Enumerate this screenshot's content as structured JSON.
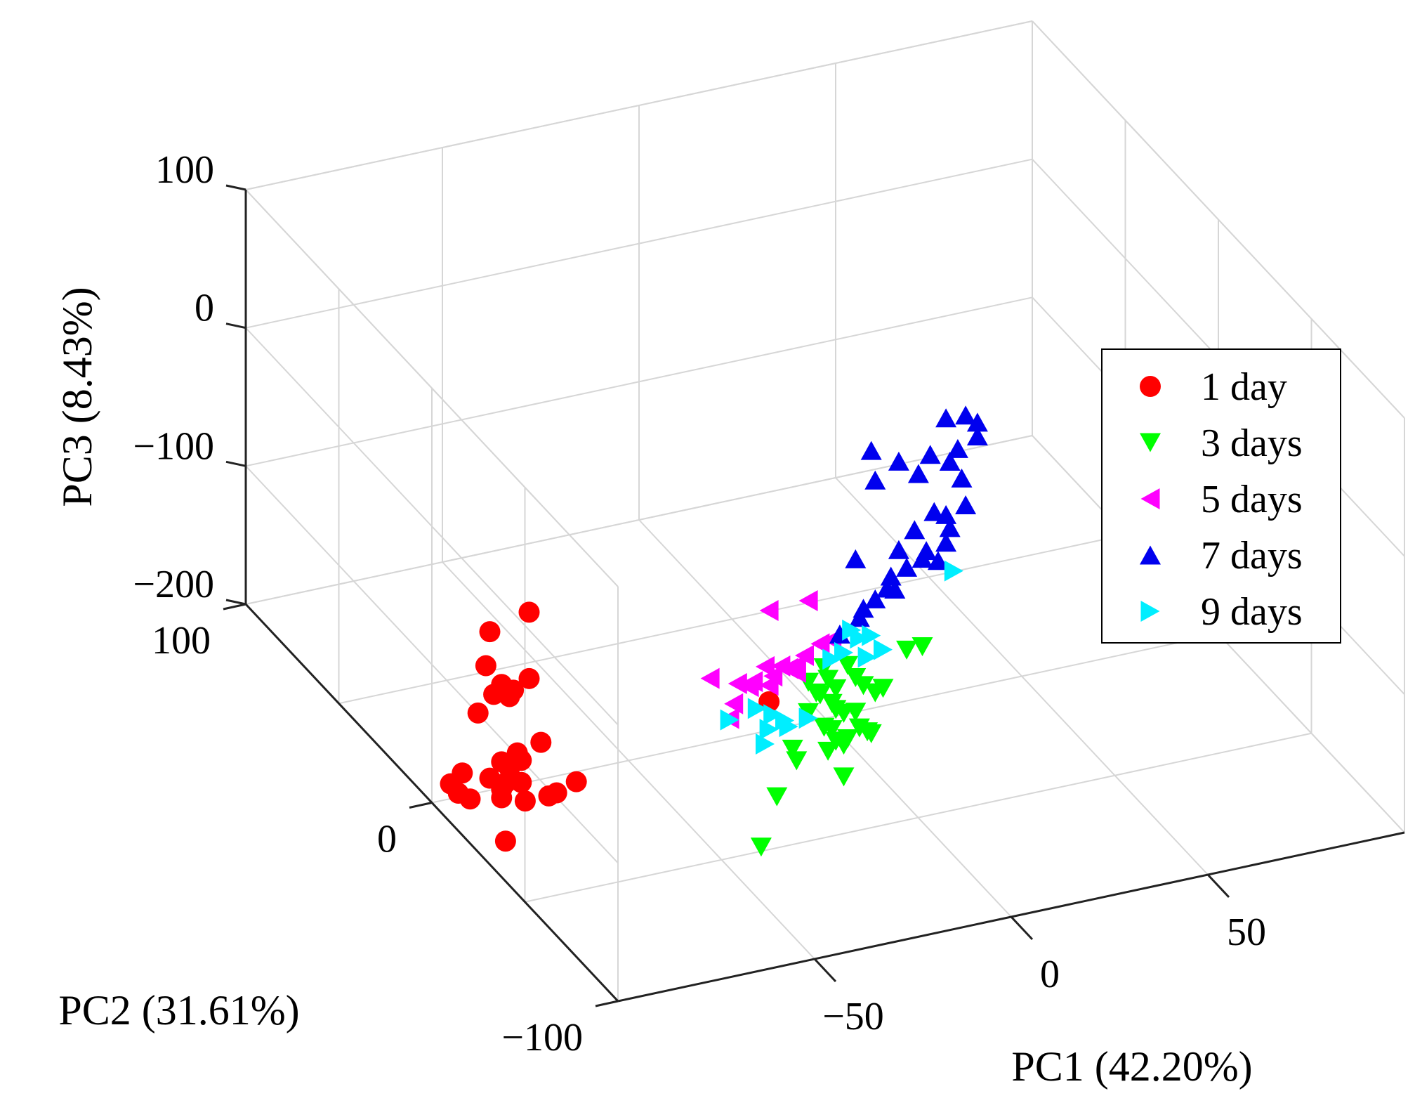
{
  "chart_data": {
    "type": "scatter3d",
    "title": "",
    "xlabel": "PC1 (42.20%)",
    "ylabel": "PC2 (31.61%)",
    "zlabel": "PC3 (8.43%)",
    "xlim": [
      -100,
      100
    ],
    "ylim": [
      -100,
      100
    ],
    "zlim": [
      -200,
      100
    ],
    "x_ticks": [
      {
        "value": -50,
        "label": "−50"
      },
      {
        "value": 0,
        "label": "0"
      },
      {
        "value": 50,
        "label": "50"
      }
    ],
    "y_ticks": [
      {
        "value": -100,
        "label": "−100"
      },
      {
        "value": 0,
        "label": "0"
      },
      {
        "value": 100,
        "label": "100"
      }
    ],
    "z_ticks": [
      {
        "value": -200,
        "label": "−200"
      },
      {
        "value": -100,
        "label": "−100"
      },
      {
        "value": 0,
        "label": "0"
      },
      {
        "value": 100,
        "label": "100"
      }
    ],
    "grid": true,
    "legend_position": "right",
    "series": [
      {
        "name": "1 day",
        "marker": "circle",
        "color": "#ff0000",
        "points": [
          [
            -90,
            -10,
            -68
          ],
          [
            -80,
            -10,
            -60
          ],
          [
            -91,
            -10,
            -92
          ],
          [
            -87,
            -10,
            -108
          ],
          [
            -80,
            -10,
            -108
          ],
          [
            -89,
            -10,
            -114
          ],
          [
            -84,
            -10,
            -114
          ],
          [
            -85,
            -10,
            -118
          ],
          [
            -93,
            -10,
            -125
          ],
          [
            -85,
            -10,
            -170
          ],
          [
            -77,
            -10,
            -156
          ],
          [
            -83,
            -10,
            -160
          ],
          [
            -87,
            -10,
            -164
          ],
          [
            -97,
            -10,
            -166
          ],
          [
            -100,
            -10,
            -172
          ],
          [
            -82,
            -10,
            -166
          ],
          [
            -86,
            -10,
            -180
          ],
          [
            -82,
            -10,
            -182
          ],
          [
            -90,
            -10,
            -174
          ],
          [
            -98,
            -10,
            -180
          ],
          [
            -95,
            -10,
            -186
          ],
          [
            -87,
            -10,
            -184
          ],
          [
            -87,
            -10,
            -190
          ],
          [
            -81,
            -10,
            -196
          ],
          [
            -75,
            -10,
            -196
          ],
          [
            -73,
            -10,
            -195
          ],
          [
            -68,
            -10,
            -190
          ],
          [
            -86,
            -10,
            -222
          ],
          [
            -19,
            -10,
            -162
          ]
        ]
      },
      {
        "name": "3 days",
        "marker": "triangle-down",
        "color": "#00ff00",
        "points": [
          [
            -5,
            -10,
            -146
          ],
          [
            1,
            -10,
            -148
          ],
          [
            -9,
            -10,
            -154
          ],
          [
            -4,
            -10,
            -155
          ],
          [
            3,
            -10,
            -158
          ],
          [
            -7,
            -10,
            -163
          ],
          [
            -2,
            -10,
            -163
          ],
          [
            -6,
            -10,
            -165
          ],
          [
            5,
            -10,
            -165
          ],
          [
            -3,
            -10,
            -173
          ],
          [
            8,
            -10,
            -172
          ],
          [
            -9,
            -10,
            -176
          ],
          [
            -2,
            -10,
            -178
          ],
          [
            0,
            -10,
            -182
          ],
          [
            3,
            -10,
            -183
          ],
          [
            -5,
            -10,
            -189
          ],
          [
            -3,
            -10,
            -192
          ],
          [
            4,
            -10,
            -195
          ],
          [
            -2,
            -10,
            -201
          ],
          [
            -13,
            -10,
            -200
          ],
          [
            6,
            -10,
            -199
          ],
          [
            1,
            -10,
            -201
          ],
          [
            0,
            -10,
            -205
          ],
          [
            -12,
            -10,
            -209
          ],
          [
            -4,
            -10,
            -207
          ],
          [
            7,
            -10,
            -201
          ],
          [
            20,
            -10,
            -146
          ],
          [
            16,
            -10,
            -146
          ],
          [
            10,
            -10,
            -170
          ],
          [
            0,
            -10,
            -228
          ],
          [
            -17,
            -10,
            -232
          ],
          [
            -21,
            -10,
            -266
          ]
        ]
      },
      {
        "name": "5 days",
        "marker": "triangle-left",
        "color": "#ff00ff",
        "points": [
          [
            -19,
            -10,
            -96
          ],
          [
            -9,
            -10,
            -95
          ],
          [
            -34,
            -10,
            -136
          ],
          [
            -27,
            -10,
            -144
          ],
          [
            -23,
            -10,
            -145
          ],
          [
            -18,
            -10,
            -144
          ],
          [
            -14,
            -10,
            -141
          ],
          [
            -10,
            -10,
            -134
          ],
          [
            -6,
            -10,
            -128
          ],
          [
            -3,
            -10,
            -127
          ],
          [
            -20,
            -10,
            -136
          ],
          [
            -16,
            -10,
            -138
          ],
          [
            -12,
            -10,
            -140
          ],
          [
            -24,
            -10,
            -148
          ],
          [
            -19,
            -10,
            -150
          ],
          [
            -12,
            -10,
            -145
          ],
          [
            -28,
            -10,
            -158
          ],
          [
            -29,
            -10,
            -168
          ]
        ]
      },
      {
        "name": "7 days",
        "marker": "triangle-up",
        "color": "#0000ee",
        "points": [
          [
            7,
            -10,
            4
          ],
          [
            26,
            -10,
            16
          ],
          [
            31,
            -10,
            15
          ],
          [
            34,
            -10,
            8
          ],
          [
            34,
            -10,
            -2
          ],
          [
            14,
            -10,
            -8
          ],
          [
            29,
            -10,
            -8
          ],
          [
            27,
            -10,
            -16
          ],
          [
            22,
            -10,
            -8
          ],
          [
            19,
            -10,
            -20
          ],
          [
            8,
            -10,
            -18
          ],
          [
            30,
            -10,
            -30
          ],
          [
            31,
            -10,
            -50
          ],
          [
            23,
            -10,
            -50
          ],
          [
            26,
            -10,
            -54
          ],
          [
            18,
            -10,
            -60
          ],
          [
            27,
            -10,
            -64
          ],
          [
            3,
            -10,
            -72
          ],
          [
            14,
            -10,
            -72
          ],
          [
            20,
            -10,
            -82
          ],
          [
            12,
            -10,
            -90
          ],
          [
            13,
            -10,
            -100
          ],
          [
            8,
            -10,
            -104
          ],
          [
            5,
            -10,
            -109
          ],
          [
            4,
            -10,
            -115
          ],
          [
            -1,
            -10,
            -124
          ],
          [
            21,
            -10,
            -77
          ],
          [
            24,
            -10,
            -86
          ],
          [
            26,
            -10,
            -74
          ],
          [
            11,
            -10,
            -98
          ],
          [
            16,
            -10,
            -86
          ]
        ]
      },
      {
        "name": "9 days",
        "marker": "triangle-right",
        "color": "#00eeff",
        "points": [
          [
            28,
            -10,
            -96
          ],
          [
            2,
            -10,
            -123
          ],
          [
            4,
            -10,
            -130
          ],
          [
            0,
            -10,
            -138
          ],
          [
            7,
            -10,
            -130
          ],
          [
            -3,
            -10,
            -141
          ],
          [
            10,
            -10,
            -142
          ],
          [
            6,
            -10,
            -145
          ],
          [
            -29,
            -10,
            -169
          ],
          [
            -22,
            -10,
            -165
          ],
          [
            -18,
            -10,
            -172
          ],
          [
            -15,
            -10,
            -178
          ],
          [
            -19,
            -10,
            -182
          ],
          [
            -14,
            -10,
            -183
          ],
          [
            -20,
            -10,
            -192
          ],
          [
            -9,
            -10,
            -180
          ]
        ]
      }
    ]
  }
}
